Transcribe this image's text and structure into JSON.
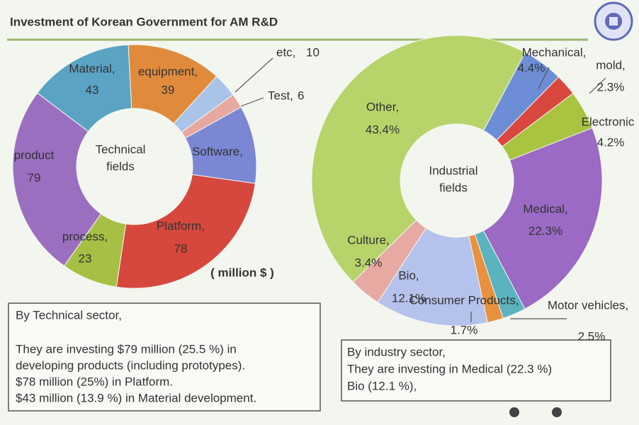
{
  "slide": {
    "title": "Investment of Korean Government for AM R&D"
  },
  "chart_data": [
    {
      "type": "donut",
      "center_label": [
        "Technical",
        "fields"
      ],
      "note": "( million $ )",
      "categories": [
        "equipment,",
        "etc,",
        "Test,",
        "Software,",
        "Platform,",
        "process,",
        "product",
        "Material,"
      ],
      "values": [
        39,
        10,
        6,
        32,
        78,
        23,
        79,
        43
      ],
      "value_labels": [
        "39",
        "10",
        "6",
        null,
        "78",
        "23",
        "79",
        "43"
      ],
      "colors": [
        "#e08b3c",
        "#a9c4e8",
        "#e6a8a0",
        "#7b86d4",
        "#d6473d",
        "#a6bf45",
        "#9b6fc0",
        "#5ba3c3"
      ]
    },
    {
      "type": "donut",
      "center_label": [
        "Industrial",
        "fields"
      ],
      "categories": [
        "Mechanical,",
        "mold,",
        "Electronic",
        "Medical,",
        "Motor vehicles,",
        "Consumer Products,",
        "Bio,",
        "Culture,",
        "Other,"
      ],
      "values": [
        4.4,
        2.3,
        4.2,
        22.3,
        2.5,
        1.7,
        12.1,
        3.4,
        43.4
      ],
      "value_labels": [
        "4.4%",
        "2.3%",
        "4.2%",
        "22.3%",
        "2.5%",
        "1.7%",
        "12.1%",
        "3.4%",
        "43.4%"
      ],
      "colors": [
        "#6d8ed6",
        "#d9473f",
        "#a8c440",
        "#9a6ac4",
        "#5bb3c0",
        "#e8913e",
        "#b4c2ec",
        "#e6aaa2",
        "#b6d46a"
      ]
    }
  ],
  "notes": [
    {
      "lines": [
        "By Technical sector,",
        "They are investing $79 million (25.5 %) in",
        "developing products (including prototypes).",
        "$78 million  (25%) in Platform.",
        "$43 million (13.9 %) in Material development."
      ]
    },
    {
      "lines": [
        "By industry sector,",
        "They are investing in Medical (22.3 %)",
        "Bio (12.1 %),"
      ]
    }
  ]
}
